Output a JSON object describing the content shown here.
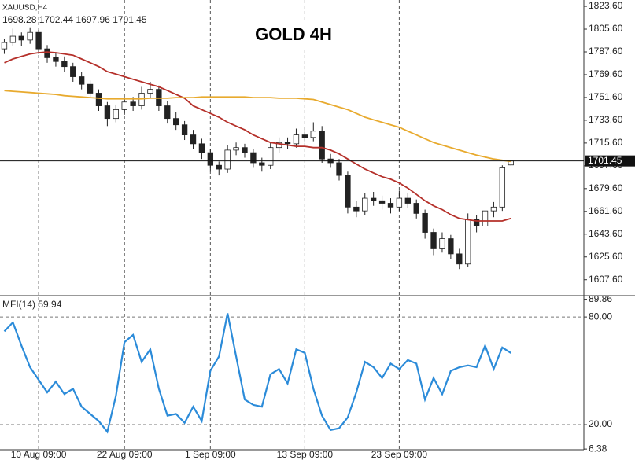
{
  "chart_data": [
    {
      "type": "candlestick",
      "title": "GOLD 4H",
      "symbol": "XAUUSD,H4",
      "xlim": [
        -0.5,
        67.5
      ],
      "ylim": [
        1595,
        1828.6
      ],
      "yticks": [
        {
          "value": 1823.6,
          "label": "1823.60"
        },
        {
          "value": 1805.6,
          "label": "1805.60"
        },
        {
          "value": 1787.6,
          "label": "1787.60"
        },
        {
          "value": 1769.6,
          "label": "1769.60"
        },
        {
          "value": 1751.6,
          "label": "1751.60"
        },
        {
          "value": 1733.6,
          "label": "1733.60"
        },
        {
          "value": 1715.6,
          "label": "1715.60"
        },
        {
          "value": 1697.6,
          "label": "1697.60"
        },
        {
          "value": 1679.6,
          "label": "1679.60"
        },
        {
          "value": 1661.6,
          "label": "1661.60"
        },
        {
          "value": 1643.6,
          "label": "1643.60"
        },
        {
          "value": 1625.6,
          "label": "1625.60"
        },
        {
          "value": 1607.6,
          "label": "1607.60"
        }
      ],
      "open": [
        1790,
        1795,
        1800,
        1797,
        1803,
        1790,
        1783,
        1780,
        1776,
        1768,
        1762,
        1755,
        1745,
        1735,
        1742,
        1748,
        1745,
        1755,
        1758,
        1745,
        1735,
        1730,
        1722,
        1715,
        1708,
        1698,
        1695,
        1710,
        1712,
        1708,
        1700,
        1698,
        1712,
        1716,
        1715,
        1722,
        1720,
        1725,
        1703,
        1700,
        1690,
        1665,
        1662,
        1672,
        1670,
        1668,
        1665,
        1672,
        1668,
        1660,
        1645,
        1632,
        1640,
        1628,
        1620,
        1655,
        1650,
        1662,
        1665,
        1698.28
      ],
      "high": [
        1798,
        1806,
        1803,
        1807,
        1805,
        1793,
        1787,
        1784,
        1779,
        1772,
        1765,
        1758,
        1748,
        1746,
        1752,
        1752,
        1760,
        1764,
        1761,
        1749,
        1740,
        1733,
        1726,
        1719,
        1711,
        1701,
        1714,
        1716,
        1715,
        1711,
        1704,
        1716,
        1720,
        1720,
        1727,
        1728,
        1732,
        1729,
        1707,
        1703,
        1693,
        1670,
        1676,
        1677,
        1674,
        1672,
        1678,
        1676,
        1671,
        1663,
        1648,
        1645,
        1643,
        1632,
        1660,
        1659,
        1666,
        1669,
        1698,
        1702.44
      ],
      "low": [
        1786,
        1792,
        1792,
        1794,
        1786,
        1779,
        1776,
        1772,
        1764,
        1758,
        1751,
        1741,
        1729,
        1732,
        1738,
        1741,
        1742,
        1751,
        1741,
        1731,
        1726,
        1718,
        1711,
        1703,
        1693,
        1690,
        1692,
        1706,
        1704,
        1696,
        1693,
        1695,
        1708,
        1711,
        1712,
        1716,
        1717,
        1700,
        1696,
        1686,
        1660,
        1657,
        1659,
        1666,
        1663,
        1660,
        1662,
        1664,
        1656,
        1640,
        1627,
        1629,
        1624,
        1616,
        1618,
        1645,
        1647,
        1657,
        1662,
        1697.96
      ],
      "close": [
        1795,
        1800,
        1797,
        1803,
        1790,
        1783,
        1780,
        1776,
        1768,
        1762,
        1755,
        1745,
        1735,
        1742,
        1748,
        1745,
        1755,
        1758,
        1745,
        1735,
        1730,
        1722,
        1715,
        1708,
        1698,
        1695,
        1710,
        1712,
        1708,
        1700,
        1698,
        1712,
        1716,
        1715,
        1722,
        1720,
        1725,
        1703,
        1700,
        1690,
        1665,
        1662,
        1672,
        1670,
        1668,
        1665,
        1672,
        1668,
        1660,
        1645,
        1632,
        1640,
        1628,
        1620,
        1655,
        1650,
        1662,
        1665,
        1696,
        1701.45
      ],
      "series": [
        {
          "color": "#b5302a",
          "values": [
            1779,
            1782,
            1784,
            1786,
            1787,
            1787.5,
            1787,
            1786,
            1785,
            1782,
            1779,
            1776,
            1772,
            1770,
            1768,
            1766,
            1764,
            1762,
            1760,
            1757,
            1754,
            1751,
            1745,
            1742,
            1739,
            1736,
            1732,
            1729,
            1726,
            1722,
            1719,
            1716,
            1715,
            1714,
            1713,
            1713,
            1712,
            1712,
            1710,
            1707,
            1703,
            1699,
            1695,
            1692,
            1689,
            1687,
            1684,
            1680,
            1675,
            1670,
            1666,
            1663,
            1659,
            1656,
            1655,
            1654,
            1654,
            1654,
            1654,
            1656
          ]
        },
        {
          "color": "#e8aa2e",
          "values": [
            1757,
            1756.5,
            1756,
            1755.5,
            1755,
            1754.5,
            1754,
            1753,
            1752.5,
            1752,
            1751.5,
            1751,
            1750.5,
            1750.5,
            1750.5,
            1750.5,
            1750.5,
            1751,
            1751,
            1751,
            1751.5,
            1751.5,
            1751.5,
            1752,
            1752,
            1752,
            1752,
            1752,
            1752,
            1751.5,
            1751.5,
            1751.5,
            1751,
            1751,
            1751,
            1750.5,
            1750,
            1748,
            1746,
            1744,
            1742,
            1739,
            1736,
            1734,
            1732,
            1730,
            1728,
            1725,
            1722,
            1719,
            1716,
            1714,
            1712,
            1710,
            1708,
            1706,
            1704.5,
            1703,
            1702,
            1701
          ]
        }
      ]
    },
    {
      "type": "line",
      "xlim": [
        -0.5,
        67.5
      ],
      "ylim": [
        6,
        91
      ],
      "yticks": [
        {
          "value": 89.86,
          "label": "89.86"
        },
        {
          "value": 80,
          "label": "80.00"
        },
        {
          "value": 20,
          "label": "20.00"
        },
        {
          "value": 6.38,
          "label": "6.38"
        }
      ],
      "levels": [
        80,
        20
      ],
      "xticks": [
        {
          "value": 4,
          "label": "10 Aug 09:00"
        },
        {
          "value": 14,
          "label": "22 Aug 09:00"
        },
        {
          "value": 24,
          "label": "1 Sep 09:00"
        },
        {
          "value": 35,
          "label": "13 Sep 09:00"
        },
        {
          "value": 46,
          "label": "23 Sep 09:00"
        }
      ],
      "series": [
        {
          "name": "MFI(14)",
          "color": "#2b8bd9",
          "values": [
            72,
            77,
            64,
            52,
            45,
            38,
            44,
            37,
            40,
            30,
            26,
            22,
            16,
            36,
            66,
            70,
            55,
            62,
            40,
            25,
            26,
            21,
            30,
            22,
            50,
            58,
            82,
            58,
            34,
            31,
            30,
            48,
            51,
            43,
            62,
            60,
            40,
            25,
            17,
            18,
            24,
            38,
            55,
            52,
            46,
            54,
            51,
            56,
            54,
            34,
            46,
            37,
            50,
            52,
            53,
            52,
            64,
            51,
            63,
            59.94
          ]
        }
      ]
    }
  ]
}
